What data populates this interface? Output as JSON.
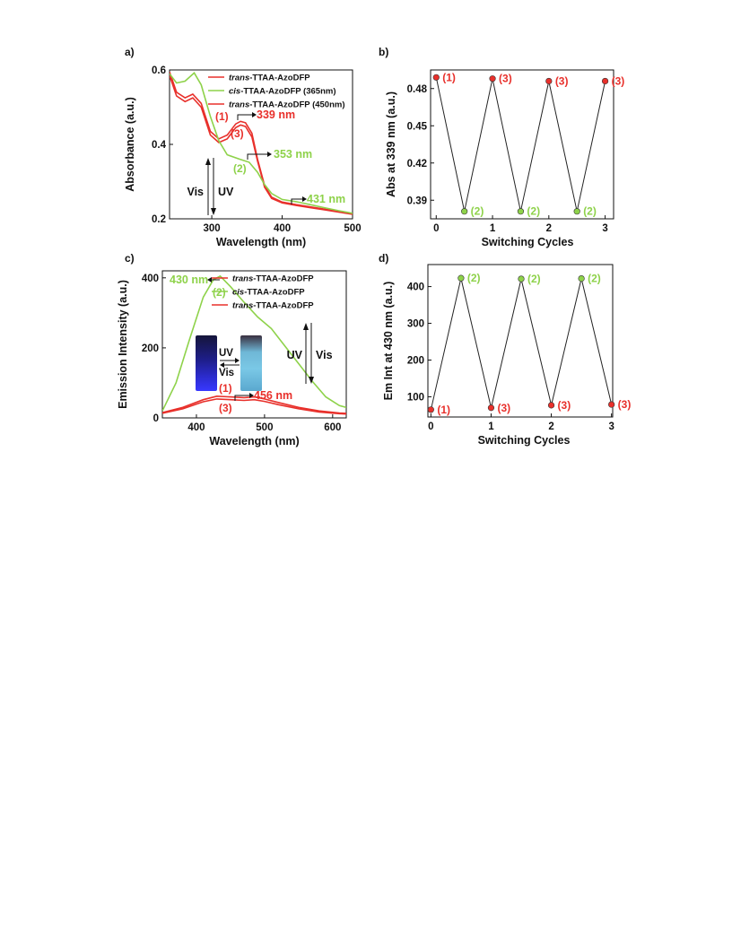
{
  "colors": {
    "red": "#e8302b",
    "green": "#8ed24a",
    "black": "#111111"
  },
  "chart_data": [
    {
      "panel": "a)",
      "type": "line",
      "xlabel": "Wavelength (nm)",
      "ylabel": "Absorbance (a.u.)",
      "xlim": [
        240,
        500
      ],
      "ylim": [
        0.2,
        0.6
      ],
      "xticks": [
        300,
        400,
        500
      ],
      "yticks": [
        0.2,
        0.4,
        0.6
      ],
      "legend": {
        "placement": "top-right",
        "entries": [
          {
            "italic": "trans",
            "rest": "-TTAA-AzoDFP",
            "color": "#e8302b"
          },
          {
            "italic": "cis",
            "rest": "-TTAA-AzoDFP (365nm)",
            "color": "#8ed24a"
          },
          {
            "italic": "trans",
            "rest": "-TTAA-AzoDFP (450nm)",
            "color": "#e8302b"
          }
        ]
      },
      "series": [
        {
          "color": "#e8302b",
          "x": [
            240,
            250,
            262,
            273,
            285,
            298,
            310,
            322,
            334,
            341,
            348,
            357,
            365,
            375,
            385,
            400,
            420,
            440,
            460,
            480,
            500
          ],
          "y": [
            0.595,
            0.54,
            0.525,
            0.535,
            0.51,
            0.435,
            0.415,
            0.425,
            0.455,
            0.462,
            0.458,
            0.43,
            0.36,
            0.29,
            0.258,
            0.245,
            0.238,
            0.232,
            0.226,
            0.22,
            0.214
          ]
        },
        {
          "color": "#e8302b",
          "x": [
            240,
            250,
            262,
            273,
            285,
            298,
            310,
            322,
            334,
            341,
            348,
            357,
            365,
            375,
            385,
            400,
            420,
            440,
            460,
            480,
            500
          ],
          "y": [
            0.585,
            0.53,
            0.515,
            0.525,
            0.5,
            0.425,
            0.405,
            0.415,
            0.445,
            0.452,
            0.448,
            0.42,
            0.355,
            0.285,
            0.255,
            0.243,
            0.236,
            0.23,
            0.224,
            0.218,
            0.212
          ]
        },
        {
          "color": "#8ed24a",
          "x": [
            240,
            250,
            262,
            275,
            285,
            298,
            310,
            322,
            340,
            353,
            365,
            375,
            385,
            400,
            420,
            440,
            460,
            480,
            500
          ],
          "y": [
            0.59,
            0.565,
            0.57,
            0.592,
            0.56,
            0.475,
            0.41,
            0.372,
            0.36,
            0.352,
            0.325,
            0.292,
            0.268,
            0.252,
            0.246,
            0.238,
            0.23,
            0.222,
            0.215
          ]
        }
      ],
      "annotations": [
        {
          "text": "(1)",
          "color": "#e8302b"
        },
        {
          "text": "339 nm",
          "color": "#e8302b"
        },
        {
          "text": "(3)",
          "color": "#e8302b"
        },
        {
          "text": "353 nm",
          "color": "#8ed24a"
        },
        {
          "text": "(2)",
          "color": "#8ed24a"
        },
        {
          "text": "431 nm",
          "color": "#8ed24a"
        },
        {
          "text": "Vis",
          "color": "#111111"
        },
        {
          "text": "UV",
          "color": "#111111"
        }
      ]
    },
    {
      "panel": "b)",
      "type": "scatter",
      "xlabel": "Switching Cycles",
      "ylabel": "Abs at 339 nm (a.u.)",
      "xlim": [
        -0.1,
        3.15
      ],
      "ylim": [
        0.375,
        0.495
      ],
      "xticks": [
        0,
        1,
        2,
        3
      ],
      "yticks": [
        0.39,
        0.42,
        0.45,
        0.48
      ],
      "ytick_labels": [
        "0.39",
        "0.42",
        "0.45",
        "0.48"
      ],
      "points": [
        {
          "x": 0,
          "y": 0.489,
          "label": "(1)",
          "color": "#e8302b"
        },
        {
          "x": 0.5,
          "y": 0.381,
          "label": "(2)",
          "color": "#8ed24a"
        },
        {
          "x": 1,
          "y": 0.488,
          "label": "(3)",
          "color": "#e8302b"
        },
        {
          "x": 1.5,
          "y": 0.381,
          "label": "(2)",
          "color": "#8ed24a"
        },
        {
          "x": 2,
          "y": 0.486,
          "label": "(3)",
          "color": "#e8302b"
        },
        {
          "x": 2.5,
          "y": 0.381,
          "label": "(2)",
          "color": "#8ed24a"
        },
        {
          "x": 3,
          "y": 0.486,
          "label": "(3)",
          "color": "#e8302b"
        }
      ]
    },
    {
      "panel": "c)",
      "type": "line",
      "xlabel": "Wavelength (nm)",
      "ylabel": "Emission Intensity (a.u.)",
      "xlim": [
        350,
        620
      ],
      "ylim": [
        0,
        420
      ],
      "xticks": [
        400,
        500,
        600
      ],
      "yticks": [
        0,
        200,
        400
      ],
      "legend": {
        "placement": "top-right",
        "entries": [
          {
            "italic": "trans",
            "rest": "-TTAA-AzoDFP",
            "color": "#e8302b"
          },
          {
            "italic": "cis",
            "rest": "-TTAA-AzoDFP",
            "color": "#8ed24a"
          },
          {
            "italic": "trans",
            "rest": "-TTAA-AzoDFP",
            "color": "#e8302b"
          }
        ]
      },
      "series": [
        {
          "color": "#8ed24a",
          "x": [
            350,
            370,
            390,
            410,
            425,
            435,
            450,
            470,
            490,
            510,
            530,
            550,
            570,
            590,
            610,
            620
          ],
          "y": [
            20,
            100,
            225,
            345,
            395,
            405,
            375,
            330,
            288,
            255,
            205,
            155,
            105,
            60,
            35,
            30
          ]
        },
        {
          "color": "#e8302b",
          "x": [
            350,
            380,
            410,
            430,
            450,
            470,
            485,
            500,
            520,
            550,
            580,
            610,
            620
          ],
          "y": [
            15,
            30,
            52,
            62,
            60,
            58,
            60,
            54,
            44,
            30,
            20,
            14,
            13
          ]
        },
        {
          "color": "#e8302b",
          "x": [
            350,
            380,
            410,
            430,
            450,
            470,
            485,
            500,
            520,
            550,
            580,
            610,
            620
          ],
          "y": [
            13,
            26,
            46,
            54,
            52,
            50,
            52,
            47,
            38,
            26,
            17,
            12,
            11
          ]
        }
      ],
      "annotations": [
        {
          "text": "430 nm",
          "color": "#8ed24a"
        },
        {
          "text": "(2)",
          "color": "#8ed24a"
        },
        {
          "text": "(1)",
          "color": "#e8302b"
        },
        {
          "text": "456 nm",
          "color": "#e8302b"
        },
        {
          "text": "(3)",
          "color": "#e8302b"
        },
        {
          "text": "UV",
          "color": "#111111"
        },
        {
          "text": "Vis",
          "color": "#111111"
        },
        {
          "text": "UV",
          "color": "#111111"
        },
        {
          "text": "Vis",
          "color": "#111111"
        }
      ]
    },
    {
      "panel": "d)",
      "type": "scatter",
      "xlabel": "Switching Cycles",
      "ylabel": "Em Int at 430 nm (a.u.)",
      "xlim": [
        -0.05,
        3.02
      ],
      "ylim": [
        45,
        460
      ],
      "xticks": [
        0,
        1,
        2,
        3
      ],
      "yticks": [
        100,
        200,
        300,
        400
      ],
      "ytick_labels": [
        "100",
        "200",
        "300",
        "400"
      ],
      "points": [
        {
          "x": 0,
          "y": 65,
          "label": "(1)",
          "color": "#e8302b"
        },
        {
          "x": 0.5,
          "y": 423,
          "label": "(2)",
          "color": "#8ed24a"
        },
        {
          "x": 1,
          "y": 70,
          "label": "(3)",
          "color": "#e8302b"
        },
        {
          "x": 1.5,
          "y": 421,
          "label": "(2)",
          "color": "#8ed24a"
        },
        {
          "x": 2,
          "y": 77,
          "label": "(3)",
          "color": "#e8302b"
        },
        {
          "x": 2.5,
          "y": 422,
          "label": "(2)",
          "color": "#8ed24a"
        },
        {
          "x": 3,
          "y": 79,
          "label": "(3)",
          "color": "#e8302b"
        }
      ]
    }
  ]
}
